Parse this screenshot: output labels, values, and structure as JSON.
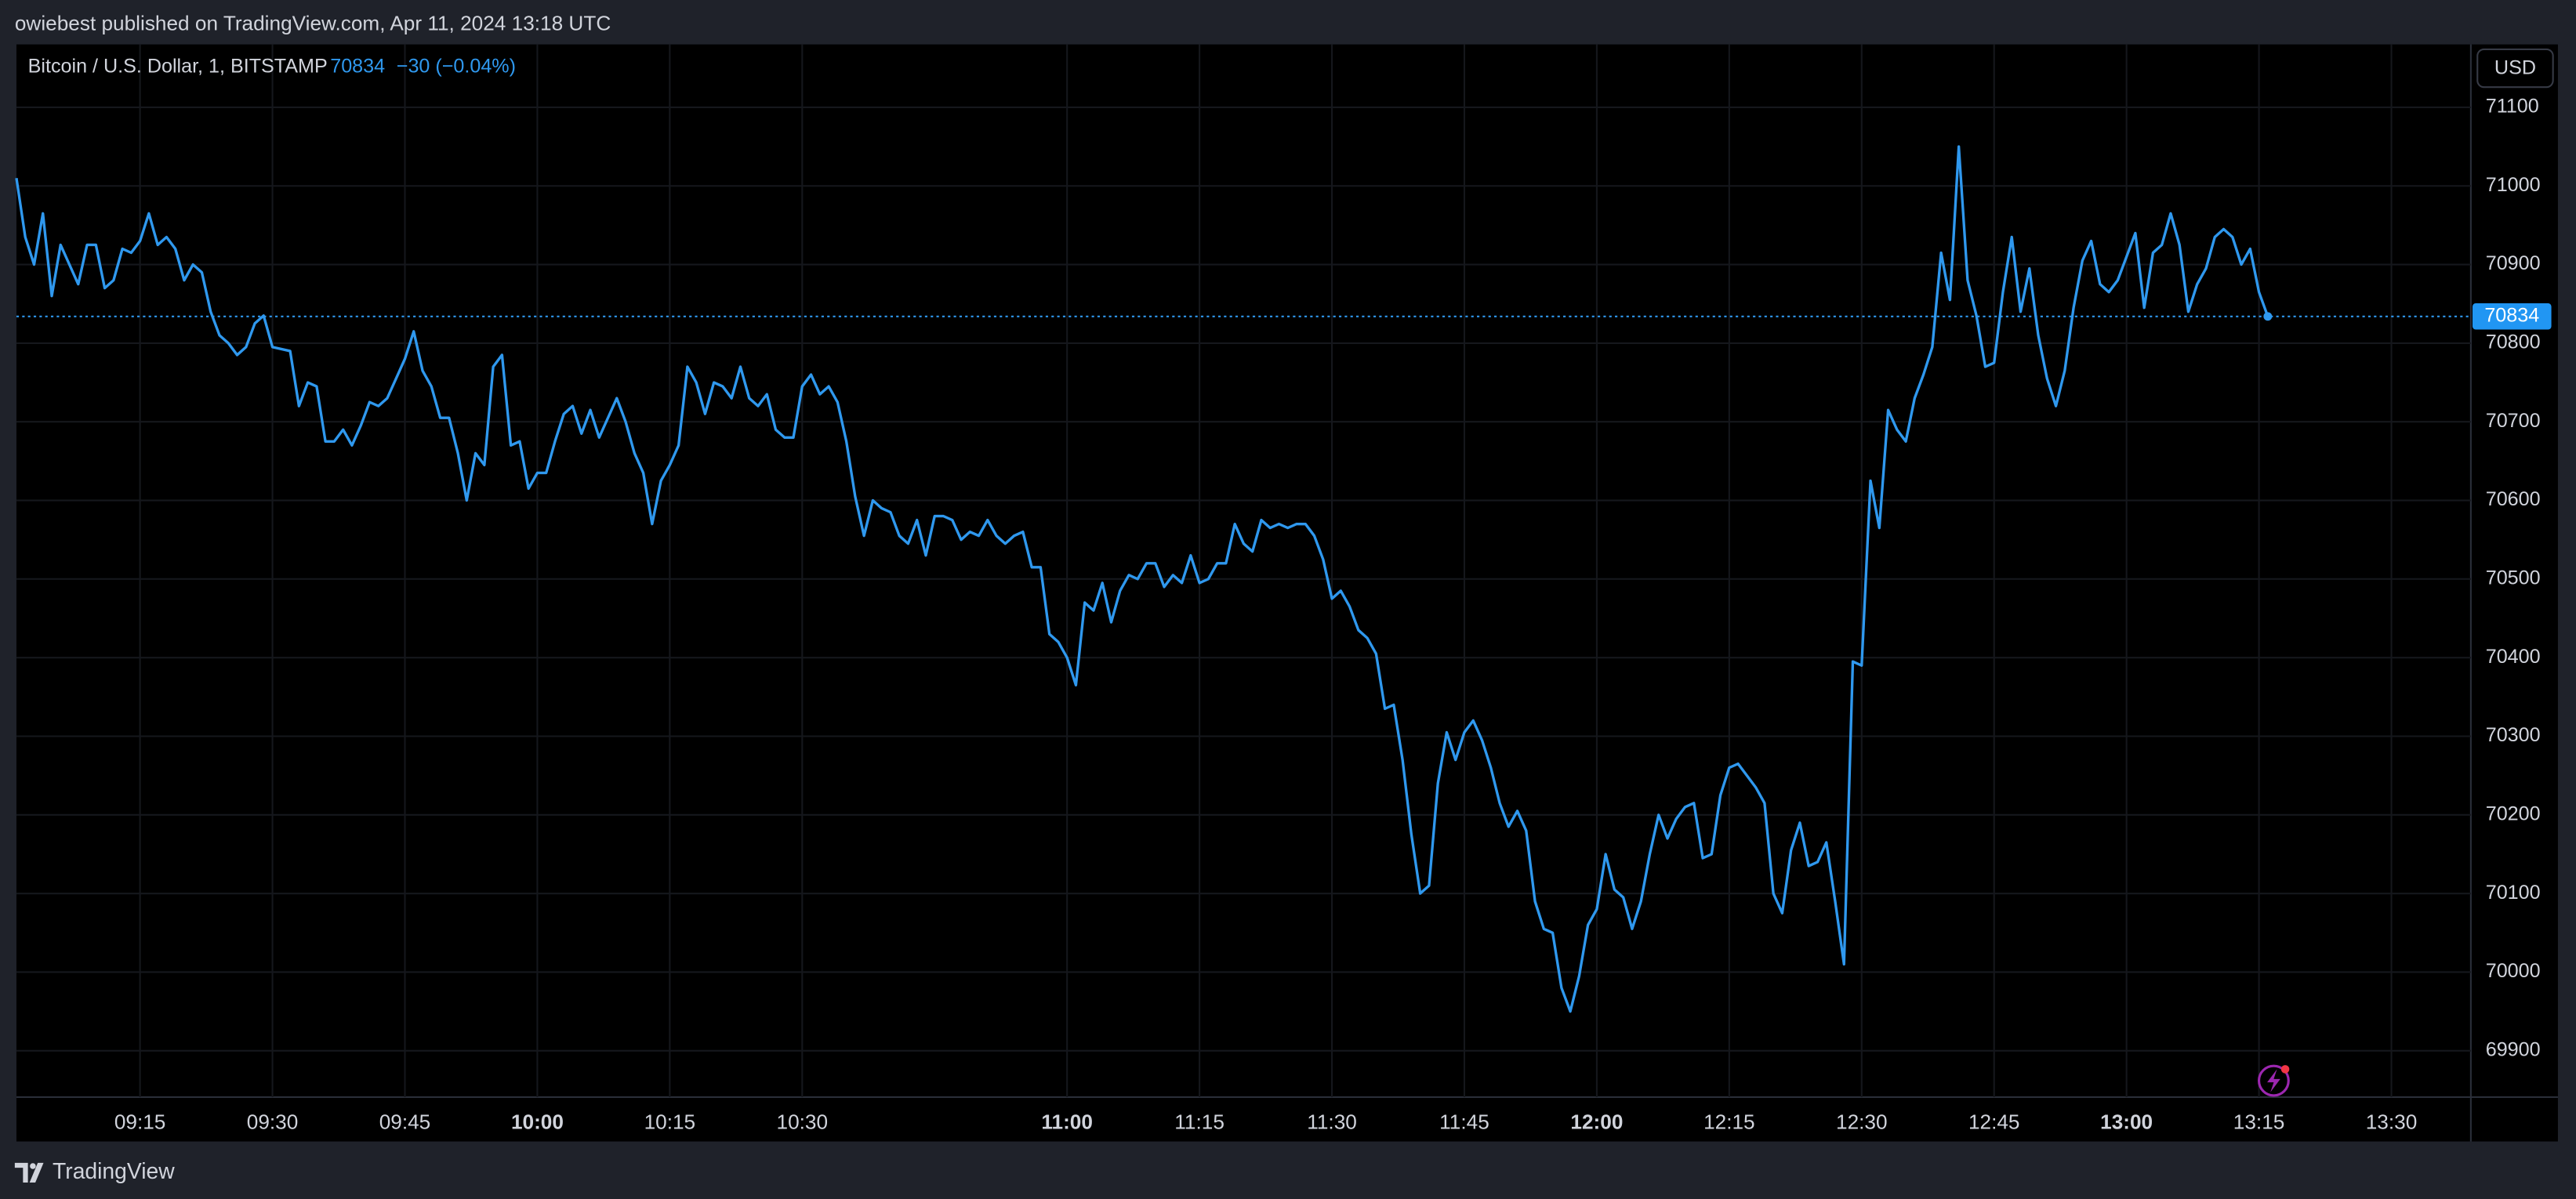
{
  "header": "owiebest published on TradingView.com, Apr 11, 2024 13:18 UTC",
  "footer": "TradingView",
  "chart_data": {
    "type": "line",
    "symbol": "Bitcoin / U.S. Dollar, 1, BITSTAMP",
    "last_price": 70834,
    "change": "−30 (−0.04%)",
    "currency": "USD",
    "color": "#2f98ee",
    "grid": true,
    "x": [
      "09:01",
      "09:02",
      "09:03",
      "09:04",
      "09:05",
      "09:06",
      "09:08",
      "09:09",
      "09:10",
      "09:11",
      "09:12",
      "09:13",
      "09:14",
      "09:15",
      "09:16",
      "09:17",
      "09:18",
      "09:19",
      "09:20",
      "09:21",
      "09:22",
      "09:23",
      "09:24",
      "09:25",
      "09:26",
      "09:27",
      "09:28",
      "09:29",
      "09:30",
      "09:32",
      "09:33",
      "09:34",
      "09:35",
      "09:36",
      "09:37",
      "09:38",
      "09:39",
      "09:40",
      "09:41",
      "09:42",
      "09:43",
      "09:44",
      "09:45",
      "09:46",
      "09:47",
      "09:48",
      "09:49",
      "09:50",
      "09:51",
      "09:52",
      "09:53",
      "09:54",
      "09:55",
      "09:56",
      "09:57",
      "09:58",
      "09:59",
      "10:00",
      "10:01",
      "10:02",
      "10:03",
      "10:04",
      "10:05",
      "10:06",
      "10:07",
      "10:09",
      "10:10",
      "10:11",
      "10:12",
      "10:13",
      "10:14",
      "10:15",
      "10:16",
      "10:17",
      "10:18",
      "10:19",
      "10:20",
      "10:21",
      "10:22",
      "10:23",
      "10:24",
      "10:25",
      "10:26",
      "10:27",
      "10:28",
      "10:29",
      "10:30",
      "10:31",
      "10:32",
      "10:33",
      "10:34",
      "10:35",
      "10:36",
      "10:37",
      "10:38",
      "10:39",
      "10:40",
      "10:41",
      "10:42",
      "10:43",
      "10:44",
      "10:45",
      "10:46",
      "10:47",
      "10:48",
      "10:49",
      "10:50",
      "10:51",
      "10:52",
      "10:53",
      "10:54",
      "10:55",
      "10:56",
      "10:57",
      "10:58",
      "10:59",
      "11:00",
      "11:01",
      "11:02",
      "11:03",
      "11:04",
      "11:05",
      "11:06",
      "11:07",
      "11:08",
      "11:09",
      "11:10",
      "11:11",
      "11:12",
      "11:13",
      "11:14",
      "11:15",
      "11:16",
      "11:17",
      "11:18",
      "11:19",
      "11:20",
      "11:21",
      "11:22",
      "11:23",
      "11:24",
      "11:25",
      "11:26",
      "11:27",
      "11:28",
      "11:29",
      "11:30",
      "11:31",
      "11:32",
      "11:33",
      "11:34",
      "11:35",
      "11:36",
      "11:37",
      "11:38",
      "11:39",
      "11:40",
      "11:41",
      "11:42",
      "11:43",
      "11:44",
      "11:45",
      "11:46",
      "11:47",
      "11:48",
      "11:49",
      "11:50",
      "11:51",
      "11:52",
      "11:53",
      "11:54",
      "11:55",
      "11:56",
      "11:57",
      "11:58",
      "11:59",
      "12:00",
      "12:01",
      "12:02",
      "12:03",
      "12:04",
      "12:05",
      "12:06",
      "12:07",
      "12:08",
      "12:09",
      "12:10",
      "12:11",
      "12:12",
      "12:13",
      "12:14",
      "12:15",
      "12:16",
      "12:17",
      "12:18",
      "12:19",
      "12:20",
      "12:21",
      "12:22",
      "12:23",
      "12:24",
      "12:25",
      "12:26",
      "12:27",
      "12:28",
      "12:29",
      "12:30",
      "12:31",
      "12:32",
      "12:33",
      "12:34",
      "12:35",
      "12:36",
      "12:37",
      "12:38",
      "12:39",
      "12:40",
      "12:41",
      "12:42",
      "12:43",
      "12:44",
      "12:45",
      "12:46",
      "12:47",
      "12:48",
      "12:49",
      "12:50",
      "12:51",
      "12:52",
      "12:53",
      "12:54",
      "12:55",
      "12:56",
      "12:57",
      "12:58",
      "12:59",
      "13:00",
      "13:01",
      "13:02",
      "13:03",
      "13:04",
      "13:05",
      "13:06",
      "13:07",
      "13:08",
      "13:09",
      "13:10",
      "13:11",
      "13:12",
      "13:13",
      "13:14",
      "13:15",
      "13:16"
    ],
    "values": [
      71010,
      70935,
      70900,
      70965,
      70860,
      70925,
      70875,
      70925,
      70925,
      70870,
      70880,
      70920,
      70915,
      70930,
      70965,
      70925,
      70935,
      70920,
      70880,
      70900,
      70890,
      70840,
      70810,
      70800,
      70785,
      70795,
      70825,
      70835,
      70795,
      70790,
      70720,
      70750,
      70745,
      70675,
      70675,
      70690,
      70670,
      70695,
      70725,
      70720,
      70730,
      70755,
      70780,
      70815,
      70765,
      70745,
      70705,
      70705,
      70660,
      70600,
      70660,
      70645,
      70770,
      70785,
      70670,
      70675,
      70615,
      70635,
      70635,
      70675,
      70710,
      70720,
      70685,
      70715,
      70680,
      70730,
      70700,
      70660,
      70635,
      70570,
      70625,
      70645,
      70670,
      70770,
      70750,
      70710,
      70750,
      70745,
      70730,
      70770,
      70730,
      70720,
      70735,
      70690,
      70680,
      70680,
      70745,
      70760,
      70735,
      70745,
      70725,
      70675,
      70605,
      70555,
      70600,
      70590,
      70585,
      70555,
      70545,
      70575,
      70530,
      70580,
      70580,
      70575,
      70550,
      70560,
      70555,
      70575,
      70555,
      70545,
      70555,
      70560,
      70515,
      70515,
      70430,
      70420,
      70400,
      70365,
      70470,
      70460,
      70495,
      70445,
      70485,
      70505,
      70500,
      70520,
      70520,
      70490,
      70505,
      70495,
      70530,
      70495,
      70500,
      70520,
      70520,
      70570,
      70545,
      70535,
      70575,
      70565,
      70570,
      70565,
      70570,
      70570,
      70555,
      70525,
      70475,
      70485,
      70465,
      70435,
      70425,
      70405,
      70335,
      70340,
      70270,
      70175,
      70100,
      70110,
      70240,
      70305,
      70270,
      70305,
      70320,
      70295,
      70260,
      70215,
      70185,
      70205,
      70180,
      70090,
      70055,
      70050,
      69980,
      69950,
      69995,
      70060,
      70080,
      70150,
      70105,
      70095,
      70055,
      70090,
      70150,
      70200,
      70170,
      70195,
      70210,
      70215,
      70145,
      70150,
      70225,
      70260,
      70265,
      70250,
      70235,
      70215,
      70100,
      70075,
      70155,
      70190,
      70135,
      70140,
      70165,
      70090,
      70010,
      70395,
      70390,
      70625,
      70565,
      70715,
      70690,
      70675,
      70730,
      70760,
      70795,
      70915,
      70855,
      71050,
      70880,
      70835,
      70770,
      70775,
      70865,
      70935,
      70840,
      70895,
      70810,
      70755,
      70720,
      70765,
      70845,
      70905,
      70930,
      70875,
      70865,
      70880,
      70910,
      70940,
      70845,
      70915,
      70925,
      70965,
      70925,
      70840,
      70875,
      70895,
      70935,
      70945,
      70935,
      70900,
      70920,
      70865,
      70834
    ],
    "xlim": [
      "09:01",
      "13:39"
    ],
    "xticks": [
      "09:15",
      "09:30",
      "09:45",
      "10:00",
      "10:15",
      "10:30",
      "11:00",
      "11:15",
      "11:30",
      "11:45",
      "12:00",
      "12:15",
      "12:30",
      "12:45",
      "13:00",
      "13:15",
      "13:30"
    ],
    "ylim": [
      69841,
      71180
    ],
    "yticks": [
      69900,
      70000,
      70100,
      70200,
      70300,
      70400,
      70500,
      70600,
      70700,
      70800,
      70900,
      71000,
      71100
    ]
  }
}
